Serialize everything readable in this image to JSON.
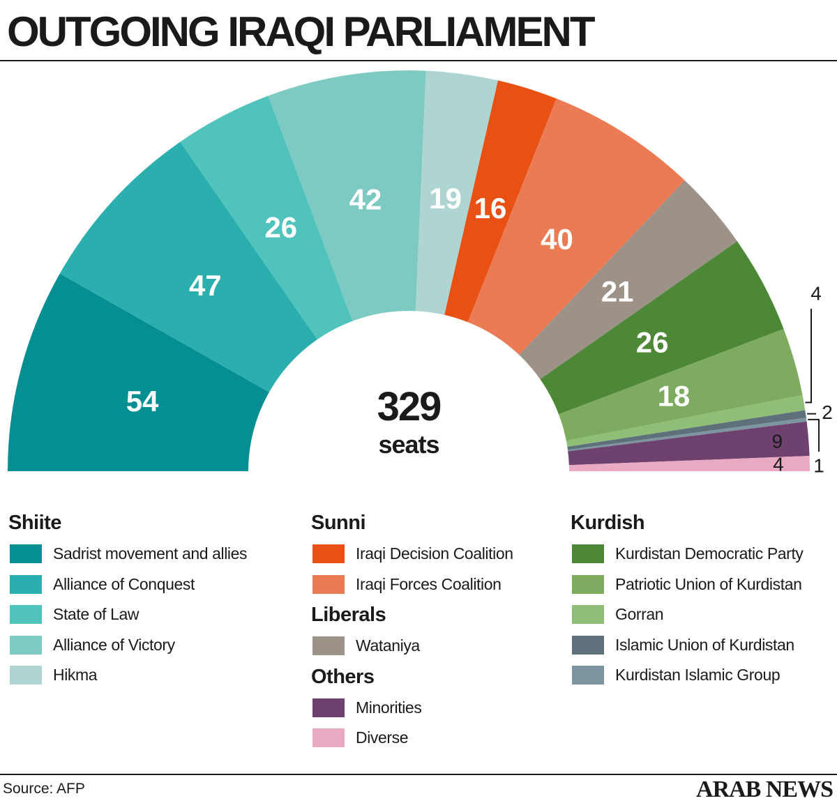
{
  "title": "OUTGOING IRAQI PARLIAMENT",
  "source": "Source: AFP",
  "brand": "ARAB NEWS",
  "chart_data": {
    "type": "pie",
    "shape": "semicircle-donut",
    "total_label": "329",
    "total_sublabel": "seats",
    "series": [
      {
        "name": "Sadrist movement and allies",
        "group": "Shiite",
        "value": 54,
        "color": "#058f93"
      },
      {
        "name": "Alliance of Conquest",
        "group": "Shiite",
        "value": 47,
        "color": "#2aaeae"
      },
      {
        "name": "State of Law",
        "group": "Shiite",
        "value": 26,
        "color": "#51c3bd"
      },
      {
        "name": "Alliance of Victory",
        "group": "Shiite",
        "value": 42,
        "color": "#7dcac3"
      },
      {
        "name": "Hikma",
        "group": "Shiite",
        "value": 19,
        "color": "#aed5d1"
      },
      {
        "name": "Iraqi Decision Coalition",
        "group": "Sunni",
        "value": 16,
        "color": "#e85113"
      },
      {
        "name": "Iraqi Forces Coalition",
        "group": "Sunni",
        "value": 40,
        "color": "#ea7b55"
      },
      {
        "name": "Wataniya",
        "group": "Liberals",
        "value": 21,
        "color": "#9c9287"
      },
      {
        "name": "Kurdistan Democratic Party",
        "group": "Kurdish",
        "value": 26,
        "color": "#4d8837"
      },
      {
        "name": "Patriotic Union of Kurdistan",
        "group": "Kurdish",
        "value": 18,
        "color": "#7eab60"
      },
      {
        "name": "Gorran",
        "group": "Kurdish",
        "value": 4,
        "color": "#8fbe76"
      },
      {
        "name": "Islamic Union of Kurdistan",
        "group": "Kurdish",
        "value": 2,
        "color": "#5e717b"
      },
      {
        "name": "Kurdistan Islamic Group",
        "group": "Kurdish",
        "value": 1,
        "color": "#7d959e"
      },
      {
        "name": "Minorities",
        "group": "Others",
        "value": 9,
        "color": "#6e416e"
      },
      {
        "name": "Diverse",
        "group": "Others",
        "value": 4,
        "color": "#e9a9c3"
      }
    ],
    "slice_labels": [
      "54",
      "47",
      "26",
      "42",
      "19",
      "16",
      "40",
      "21",
      "26",
      "18",
      "4",
      "2",
      "1",
      "9",
      "4"
    ]
  },
  "legend": [
    {
      "title": "Shiite",
      "items": [
        {
          "label": "Sadrist movement and allies",
          "color": "#058f93"
        },
        {
          "label": "Alliance of Conquest",
          "color": "#2aaeae"
        },
        {
          "label": "State of Law",
          "color": "#51c3bd"
        },
        {
          "label": "Alliance of Victory",
          "color": "#7dcac3"
        },
        {
          "label": "Hikma",
          "color": "#aed5d1"
        }
      ]
    },
    {
      "title": "Sunni",
      "items": [
        {
          "label": "Iraqi Decision Coalition",
          "color": "#e85113"
        },
        {
          "label": "Iraqi Forces Coalition",
          "color": "#ea7b55"
        }
      ]
    },
    {
      "title": "Liberals",
      "items": [
        {
          "label": "Wataniya",
          "color": "#9c9287"
        }
      ]
    },
    {
      "title": "Others",
      "items": [
        {
          "label": "Minorities",
          "color": "#6e416e"
        },
        {
          "label": "Diverse",
          "color": "#e9a9c3"
        }
      ]
    },
    {
      "title": "Kurdish",
      "items": [
        {
          "label": "Kurdistan Democratic Party",
          "color": "#4d8837"
        },
        {
          "label": "Patriotic Union of Kurdistan",
          "color": "#7eab60"
        },
        {
          "label": "Gorran",
          "color": "#8fbe76"
        },
        {
          "label": "Islamic Union of Kurdistan",
          "color": "#5e717b"
        },
        {
          "label": "Kurdistan Islamic Group",
          "color": "#7d959e"
        }
      ]
    }
  ]
}
